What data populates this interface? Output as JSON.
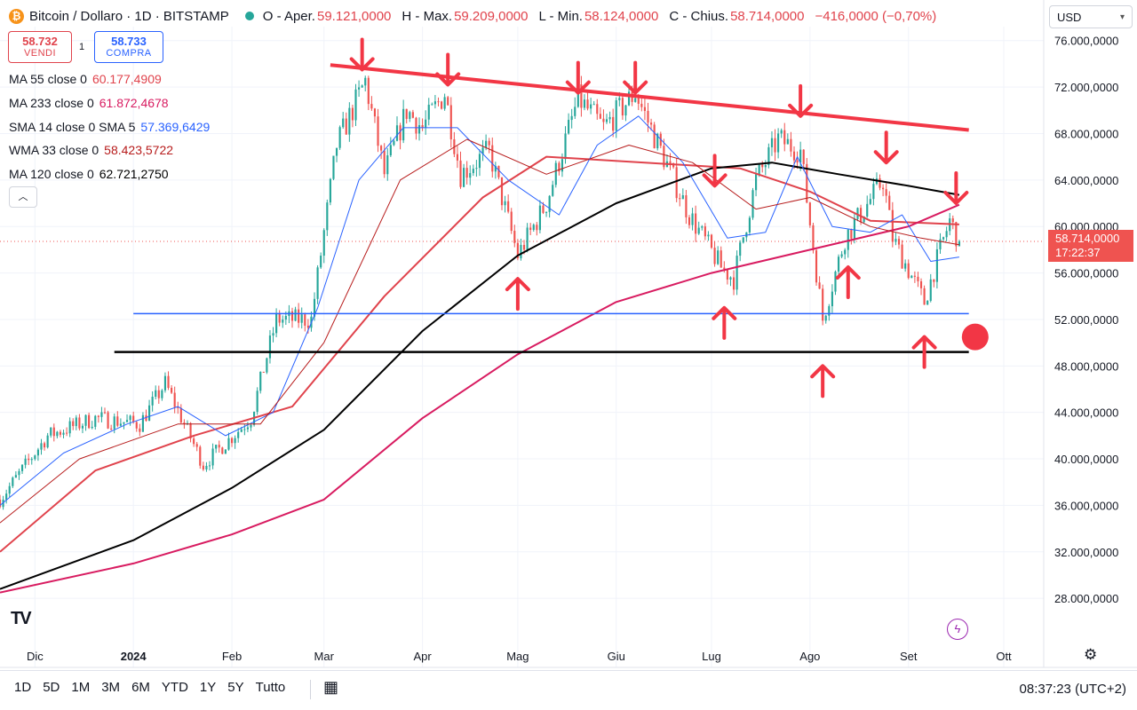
{
  "header": {
    "symbol": "Bitcoin / Dollaro · 1D · BITSTAMP",
    "btc_icon": "₿",
    "ohlc": [
      {
        "k": "O - Aper.",
        "v": "59.121,0000"
      },
      {
        "k": "H - Max.",
        "v": "59.209,0000"
      },
      {
        "k": "L - Min.",
        "v": "58.124,0000"
      },
      {
        "k": "C - Chius.",
        "v": "58.714,0000"
      },
      {
        "k": "",
        "v": "−416,0000 (−0,70%)"
      }
    ]
  },
  "trade": {
    "sell_price": "58.732",
    "sell_label": "VENDI",
    "qty": "1",
    "buy_price": "58.733",
    "buy_label": "COMPRA"
  },
  "indicators": [
    {
      "name": "MA 55 close 0",
      "value": "60.177,4909",
      "color": "#e0434c"
    },
    {
      "name": "MA 233 close 0",
      "value": "61.872,4678",
      "color": "#d81b60"
    },
    {
      "name": "SMA 14 close 0 SMA 5",
      "value": "57.369,6429",
      "color": "#2962ff"
    },
    {
      "name": "WMA 33 close 0",
      "value": "58.423,5722",
      "color": "#b71c1c"
    },
    {
      "name": "MA 120 close 0",
      "value": "62.721,2750",
      "color": "#000000"
    }
  ],
  "collapse_icon": "chevron-up-icon",
  "currency": "USD",
  "price_label": {
    "price": "58.714,0000",
    "countdown": "17:22:37"
  },
  "ranges": [
    "1D",
    "5D",
    "1M",
    "3M",
    "6M",
    "YTD",
    "1Y",
    "5Y",
    "Tutto"
  ],
  "clock": "08:37:23 (UTC+2)",
  "colors": {
    "up": "#26a69a",
    "down": "#ef5350",
    "annotation": "#f23645"
  },
  "chart_data": {
    "type": "candlestick",
    "x_ticks": [
      "Dic",
      "2024",
      "Feb",
      "Mar",
      "Apr",
      "Mag",
      "Giu",
      "Lug",
      "Ago",
      "Set",
      "Ott"
    ],
    "y_ticks": [
      "76.000,0000",
      "72.000,0000",
      "68.000,0000",
      "64.000,0000",
      "60.000,0000",
      "56.000,0000",
      "52.000,0000",
      "48.000,0000",
      "44.000,0000",
      "40.000,0000",
      "36.000,0000",
      "32.000,0000",
      "28.000,0000"
    ],
    "ylim": [
      24500,
      77200
    ],
    "last_price": 58714,
    "price_path": [
      [
        "2023-11-20",
        36500
      ],
      [
        "2023-12-05",
        42000
      ],
      [
        "2023-12-20",
        43500
      ],
      [
        "2024-01-03",
        43000
      ],
      [
        "2024-01-11",
        46500
      ],
      [
        "2024-01-23",
        39500
      ],
      [
        "2024-02-07",
        43500
      ],
      [
        "2024-02-15",
        52000
      ],
      [
        "2024-02-26",
        52000
      ],
      [
        "2024-03-05",
        67000
      ],
      [
        "2024-03-14",
        72500
      ],
      [
        "2024-03-20",
        64500
      ],
      [
        "2024-03-27",
        70000
      ],
      [
        "2024-04-01",
        68500
      ],
      [
        "2024-04-08",
        71500
      ],
      [
        "2024-04-13",
        64500
      ],
      [
        "2024-04-22",
        66500
      ],
      [
        "2024-05-01",
        57500
      ],
      [
        "2024-05-10",
        62000
      ],
      [
        "2024-05-20",
        71000
      ],
      [
        "2024-05-28",
        68500
      ],
      [
        "2024-06-07",
        71500
      ],
      [
        "2024-06-24",
        61000
      ],
      [
        "2024-07-04",
        56500
      ],
      [
        "2024-07-08",
        55500
      ],
      [
        "2024-07-15",
        64000
      ],
      [
        "2024-07-22",
        67500
      ],
      [
        "2024-07-29",
        66500
      ],
      [
        "2024-08-05",
        52000
      ],
      [
        "2024-08-12",
        59000
      ],
      [
        "2024-08-24",
        64000
      ],
      [
        "2024-08-27",
        59000
      ],
      [
        "2024-09-06",
        53500
      ],
      [
        "2024-09-11",
        58000
      ],
      [
        "2024-09-14",
        60500
      ],
      [
        "2024-09-17",
        58714
      ]
    ],
    "series": [
      {
        "name": "MA 55 close 0",
        "color": "#e0434c",
        "width": 2,
        "points": [
          [
            "2023-11-20",
            32000
          ],
          [
            "2023-12-20",
            39000
          ],
          [
            "2024-01-20",
            42000
          ],
          [
            "2024-02-20",
            44500
          ],
          [
            "2024-03-20",
            54000
          ],
          [
            "2024-04-20",
            62500
          ],
          [
            "2024-05-10",
            66000
          ],
          [
            "2024-06-10",
            65500
          ],
          [
            "2024-07-10",
            65000
          ],
          [
            "2024-08-01",
            63000
          ],
          [
            "2024-08-20",
            60500
          ],
          [
            "2024-09-17",
            60177
          ]
        ]
      },
      {
        "name": "MA 233 close 0",
        "color": "#d81b60",
        "width": 2,
        "points": [
          [
            "2023-11-20",
            28500
          ],
          [
            "2024-01-01",
            31000
          ],
          [
            "2024-02-01",
            33500
          ],
          [
            "2024-03-01",
            36500
          ],
          [
            "2024-04-01",
            43500
          ],
          [
            "2024-05-01",
            49000
          ],
          [
            "2024-06-01",
            53500
          ],
          [
            "2024-07-01",
            56000
          ],
          [
            "2024-08-01",
            58000
          ],
          [
            "2024-09-01",
            60000
          ],
          [
            "2024-09-17",
            61872
          ]
        ]
      },
      {
        "name": "MA 120 close 0",
        "color": "#000000",
        "width": 2,
        "points": [
          [
            "2023-11-20",
            28800
          ],
          [
            "2024-01-01",
            33000
          ],
          [
            "2024-02-01",
            37500
          ],
          [
            "2024-03-01",
            42500
          ],
          [
            "2024-04-01",
            51000
          ],
          [
            "2024-05-01",
            57500
          ],
          [
            "2024-06-01",
            62000
          ],
          [
            "2024-07-01",
            65000
          ],
          [
            "2024-07-20",
            65500
          ],
          [
            "2024-08-10",
            64500
          ],
          [
            "2024-09-01",
            63500
          ],
          [
            "2024-09-17",
            62721
          ]
        ]
      },
      {
        "name": "SMA 14 close 0 SMA 5",
        "color": "#2962ff",
        "width": 1,
        "points": [
          [
            "2023-11-20",
            36000
          ],
          [
            "2023-12-10",
            40500
          ],
          [
            "2023-12-30",
            43000
          ],
          [
            "2024-01-15",
            44500
          ],
          [
            "2024-01-30",
            42000
          ],
          [
            "2024-02-14",
            44000
          ],
          [
            "2024-02-28",
            53000
          ],
          [
            "2024-03-12",
            64000
          ],
          [
            "2024-03-26",
            68500
          ],
          [
            "2024-04-12",
            68500
          ],
          [
            "2024-04-28",
            64000
          ],
          [
            "2024-05-14",
            61000
          ],
          [
            "2024-05-26",
            67000
          ],
          [
            "2024-06-08",
            69500
          ],
          [
            "2024-06-22",
            65500
          ],
          [
            "2024-07-06",
            59000
          ],
          [
            "2024-07-18",
            59500
          ],
          [
            "2024-07-28",
            66000
          ],
          [
            "2024-08-08",
            60000
          ],
          [
            "2024-08-20",
            59500
          ],
          [
            "2024-08-30",
            61000
          ],
          [
            "2024-09-08",
            57000
          ],
          [
            "2024-09-17",
            57369
          ]
        ]
      },
      {
        "name": "WMA 33 close 0",
        "color": "#b71c1c",
        "width": 1,
        "points": [
          [
            "2023-11-20",
            34500
          ],
          [
            "2023-12-15",
            40000
          ],
          [
            "2024-01-15",
            43000
          ],
          [
            "2024-02-10",
            43000
          ],
          [
            "2024-03-01",
            50000
          ],
          [
            "2024-03-25",
            64000
          ],
          [
            "2024-04-15",
            67500
          ],
          [
            "2024-05-10",
            64500
          ],
          [
            "2024-06-05",
            67000
          ],
          [
            "2024-06-25",
            65500
          ],
          [
            "2024-07-15",
            61500
          ],
          [
            "2024-08-01",
            62500
          ],
          [
            "2024-08-20",
            60000
          ],
          [
            "2024-09-05",
            59000
          ],
          [
            "2024-09-17",
            58423
          ]
        ]
      }
    ],
    "annotations": {
      "trendline_red": [
        [
          "2024-03-03",
          73900
        ],
        [
          "2024-09-20",
          68300
        ]
      ],
      "hline_blue": {
        "y": 52500,
        "from": "2024-01-01",
        "to": "2024-09-20"
      },
      "hline_black": {
        "y": 49200,
        "from": "2023-12-26",
        "to": "2024-09-20"
      },
      "down_arrows": [
        [
          "2024-03-13",
          73500
        ],
        [
          "2024-04-09",
          72200
        ],
        [
          "2024-05-20",
          71500
        ],
        [
          "2024-06-07",
          71500
        ],
        [
          "2024-07-29",
          69500
        ],
        [
          "2024-08-25",
          65500
        ],
        [
          "2024-09-16",
          62000
        ]
      ],
      "down_arrows_mid": [
        [
          "2024-07-02",
          63500
        ]
      ],
      "up_arrows": [
        [
          "2024-05-01",
          55500
        ],
        [
          "2024-07-05",
          53000
        ],
        [
          "2024-08-05",
          48000
        ],
        [
          "2024-08-13",
          56500
        ],
        [
          "2024-09-06",
          50500
        ]
      ],
      "dot": [
        "2024-09-22",
        50500
      ]
    }
  }
}
